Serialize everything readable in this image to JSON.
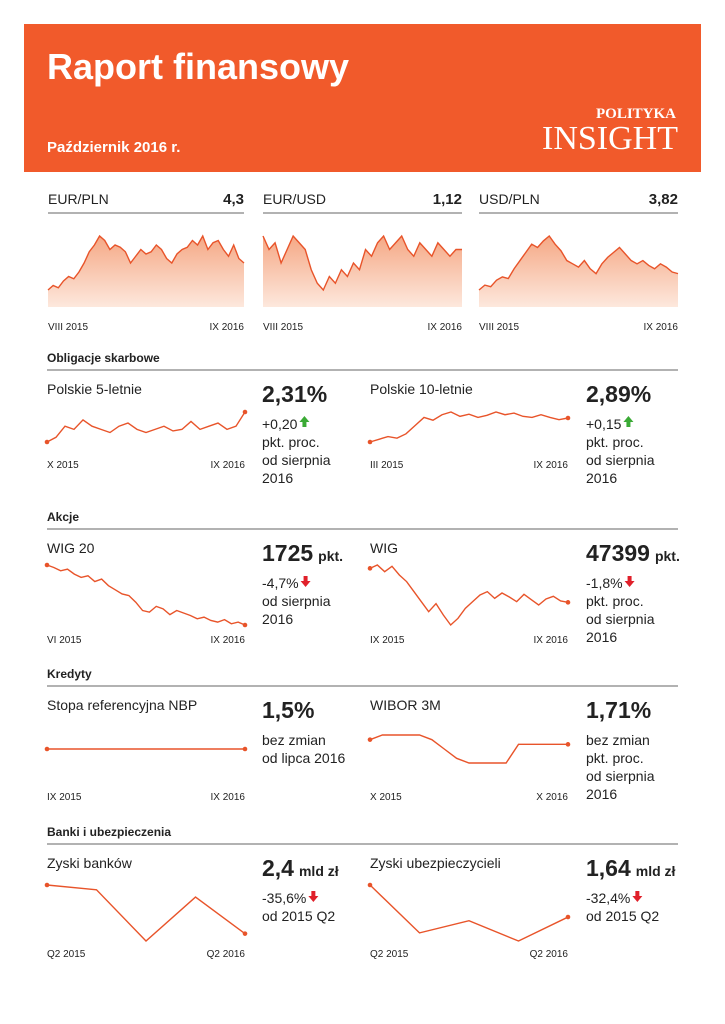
{
  "header": {
    "title": "Raport finansowy",
    "date": "Październik 2016 r.",
    "brand_top": "POLITYKA",
    "brand": "INSIGHT"
  },
  "currencies": [
    {
      "name": "EUR/PLN",
      "value": "4,3",
      "start": "VIII 2015",
      "end": "IX 2016",
      "values": [
        4.18,
        4.2,
        4.19,
        4.22,
        4.24,
        4.23,
        4.26,
        4.3,
        4.35,
        4.38,
        4.42,
        4.4,
        4.36,
        4.38,
        4.37,
        4.35,
        4.3,
        4.33,
        4.36,
        4.34,
        4.35,
        4.38,
        4.36,
        4.32,
        4.3,
        4.34,
        4.36,
        4.37,
        4.4,
        4.38,
        4.42,
        4.36,
        4.39,
        4.4,
        4.36,
        4.33,
        4.38,
        4.32,
        4.3
      ]
    },
    {
      "name": "EUR/USD",
      "value": "1,12",
      "start": "VIII 2015",
      "end": "IX  2016",
      "values": [
        1.14,
        1.12,
        1.13,
        1.1,
        1.12,
        1.14,
        1.13,
        1.12,
        1.09,
        1.07,
        1.06,
        1.08,
        1.07,
        1.09,
        1.08,
        1.1,
        1.09,
        1.12,
        1.11,
        1.13,
        1.14,
        1.12,
        1.13,
        1.14,
        1.12,
        1.11,
        1.13,
        1.12,
        1.11,
        1.13,
        1.12,
        1.11,
        1.12,
        1.12
      ]
    },
    {
      "name": "USD/PLN",
      "value": "3,82",
      "start": "VIII 2015",
      "end": "IX 2016",
      "values": [
        3.72,
        3.75,
        3.74,
        3.78,
        3.8,
        3.79,
        3.85,
        3.9,
        3.95,
        4.0,
        3.98,
        4.02,
        4.05,
        4.0,
        3.96,
        3.9,
        3.88,
        3.86,
        3.9,
        3.85,
        3.82,
        3.88,
        3.92,
        3.95,
        3.98,
        3.94,
        3.9,
        3.88,
        3.9,
        3.87,
        3.85,
        3.88,
        3.86,
        3.83,
        3.82
      ]
    }
  ],
  "sections": [
    {
      "title": "Obligacje skarbowe",
      "items": [
        {
          "name": "Polskie 5-letnie",
          "value": "2,31%",
          "change": "+0,20",
          "direction": "up",
          "note": [
            "pkt. proc.",
            "od sierpnia",
            "2016"
          ],
          "start": "X 2015",
          "end": "IX 2016",
          "values": [
            2.12,
            2.15,
            2.22,
            2.2,
            2.26,
            2.22,
            2.2,
            2.18,
            2.22,
            2.24,
            2.2,
            2.18,
            2.2,
            2.22,
            2.19,
            2.2,
            2.25,
            2.2,
            2.22,
            2.24,
            2.2,
            2.22,
            2.31
          ]
        },
        {
          "name": "Polskie 10-letnie",
          "value": "2,89%",
          "change": "+0,15",
          "direction": "up",
          "note": [
            "pkt. proc.",
            "od sierpnia",
            "2016"
          ],
          "start": "III 2015",
          "end": "IX 2016",
          "values": [
            2.45,
            2.5,
            2.55,
            2.52,
            2.6,
            2.75,
            2.9,
            2.85,
            2.95,
            3.0,
            2.92,
            2.96,
            2.9,
            2.94,
            3.0,
            2.95,
            2.98,
            2.92,
            2.9,
            2.95,
            2.9,
            2.86,
            2.89
          ]
        }
      ]
    },
    {
      "title": "Akcje",
      "items": [
        {
          "name": "WIG 20",
          "value": "1725",
          "unit": "pkt.",
          "change": "-4,7%",
          "direction": "down",
          "note": [
            "od sierpnia",
            "2016"
          ],
          "start": "VI 2015",
          "end": "IX 2016",
          "values": [
            2450,
            2420,
            2380,
            2400,
            2340,
            2300,
            2320,
            2250,
            2280,
            2200,
            2150,
            2100,
            2080,
            2000,
            1900,
            1880,
            1950,
            1920,
            1850,
            1900,
            1870,
            1840,
            1800,
            1820,
            1780,
            1760,
            1790,
            1740,
            1760,
            1725
          ]
        },
        {
          "name": "WIG",
          "value": "47399",
          "unit": "pkt.",
          "change": "-1,8%",
          "direction": "down",
          "note": [
            "pkt. proc.",
            "od sierpnia",
            "2016"
          ],
          "start": "IX 2015",
          "end": "IX 2016",
          "values": [
            52500,
            53000,
            52000,
            52800,
            51500,
            50500,
            49000,
            47500,
            46000,
            47200,
            45500,
            44000,
            45000,
            46500,
            47500,
            48500,
            49000,
            48000,
            48800,
            48200,
            47500,
            48600,
            47800,
            47000,
            47900,
            48300,
            47600,
            47399
          ]
        }
      ]
    },
    {
      "title": "Kredyty",
      "items": [
        {
          "name": "Stopa referencyjna NBP",
          "value": "1,5%",
          "change": "bez zmian",
          "note": [
            "od lipca 2016"
          ],
          "start": "IX 2015",
          "end": "IX 2016",
          "values": [
            1.5,
            1.5,
            1.5,
            1.5,
            1.5,
            1.5,
            1.5,
            1.5,
            1.5,
            1.5,
            1.5,
            1.5,
            1.5
          ]
        },
        {
          "name": "WIBOR 3M",
          "value": "1,71%",
          "change": "bez zmian",
          "note": [
            "pkt. proc.",
            "od sierpnia",
            "2016"
          ],
          "start": "X 2015",
          "end": "X 2016",
          "values": [
            1.72,
            1.73,
            1.73,
            1.73,
            1.73,
            1.72,
            1.7,
            1.68,
            1.67,
            1.67,
            1.67,
            1.67,
            1.71,
            1.71,
            1.71,
            1.71,
            1.71
          ]
        }
      ]
    },
    {
      "title": "Banki i ubezpieczenia",
      "items": [
        {
          "name": "Zyski banków",
          "value": "2,4",
          "unit": "mld zł",
          "change": "-35,6%",
          "direction": "down",
          "note": [
            "od 2015 Q2"
          ],
          "start": "Q2 2015",
          "end": "Q2 2016",
          "values": [
            3.73,
            3.6,
            2.2,
            3.4,
            2.4
          ]
        },
        {
          "name": "Zyski ubezpieczycieli",
          "value": "1,64",
          "unit": "mld zł",
          "change": "-32,4%",
          "direction": "down",
          "note": [
            "od 2015 Q2"
          ],
          "start": "Q2 2015",
          "end": "Q2 2016",
          "values": [
            2.43,
            1.25,
            1.55,
            1.05,
            1.64
          ]
        }
      ]
    }
  ]
}
